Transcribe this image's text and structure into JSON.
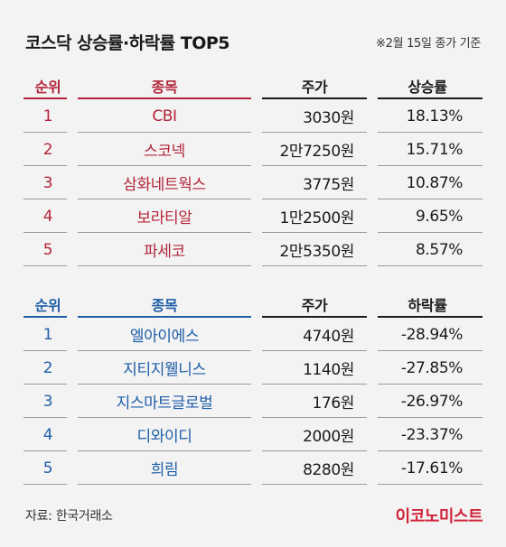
{
  "title": "코스닥 상승률·하락률 TOP5",
  "date_note": "※2월 15일 종가 기준",
  "colors": {
    "gainer": "#b3243a",
    "loser": "#1f5ea8",
    "brand": "#d0243a"
  },
  "gainers": {
    "headers": {
      "rank": "순위",
      "name": "종목",
      "price": "주가",
      "rate": "상승률"
    },
    "rows": [
      {
        "rank": "1",
        "name": "CBI",
        "price": "3030원",
        "rate": "18.13%"
      },
      {
        "rank": "2",
        "name": "스코넥",
        "price": "2만7250원",
        "rate": "15.71%"
      },
      {
        "rank": "3",
        "name": "삼화네트웍스",
        "price": "3775원",
        "rate": "10.87%"
      },
      {
        "rank": "4",
        "name": "보라티알",
        "price": "1만2500원",
        "rate": "9.65%"
      },
      {
        "rank": "5",
        "name": "파세코",
        "price": "2만5350원",
        "rate": "8.57%"
      }
    ]
  },
  "losers": {
    "headers": {
      "rank": "순위",
      "name": "종목",
      "price": "주가",
      "rate": "하락률"
    },
    "rows": [
      {
        "rank": "1",
        "name": "엘아이에스",
        "price": "4740원",
        "rate": "-28.94%"
      },
      {
        "rank": "2",
        "name": "지티지웰니스",
        "price": "1140원",
        "rate": "-27.85%"
      },
      {
        "rank": "3",
        "name": "지스마트글로벌",
        "price": "176원",
        "rate": "-26.97%"
      },
      {
        "rank": "4",
        "name": "디와이디",
        "price": "2000원",
        "rate": "-23.37%"
      },
      {
        "rank": "5",
        "name": "희림",
        "price": "8280원",
        "rate": "-17.61%"
      }
    ]
  },
  "source": "자료: 한국거래소",
  "brand": "이코노미스트"
}
